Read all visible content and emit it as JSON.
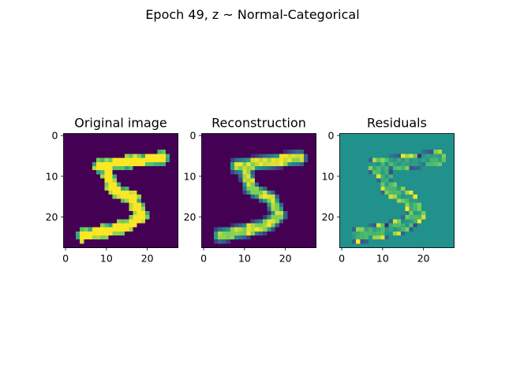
{
  "figure": {
    "suptitle": "Epoch 49, z ~ Normal-Categorical"
  },
  "colors": {
    "viridis_dark": "#440154",
    "viridis_teal": "#21918c",
    "viridis_yellow": "#fde725",
    "axis_black": "#000000"
  },
  "chart_data": [
    {
      "type": "heatmap",
      "title": "Original image",
      "colormap": "viridis",
      "xlim": [
        0,
        28
      ],
      "ylim": [
        0,
        28
      ],
      "xticks": [
        "0",
        "10",
        "20"
      ],
      "yticks": [
        "0",
        "10",
        "20"
      ],
      "grid": false
    },
    {
      "type": "heatmap",
      "title": "Reconstruction",
      "colormap": "viridis",
      "xlim": [
        0,
        28
      ],
      "ylim": [
        0,
        28
      ],
      "xticks": [
        "0",
        "10",
        "20"
      ],
      "yticks": [
        "0",
        "10",
        "20"
      ],
      "grid": false
    },
    {
      "type": "heatmap",
      "title": "Residuals",
      "colormap": "viridis",
      "xlim": [
        0,
        28
      ],
      "ylim": [
        0,
        28
      ],
      "xticks": [
        "0",
        "10",
        "20"
      ],
      "yticks": [
        "0",
        "10",
        "20"
      ],
      "grid": false
    }
  ]
}
